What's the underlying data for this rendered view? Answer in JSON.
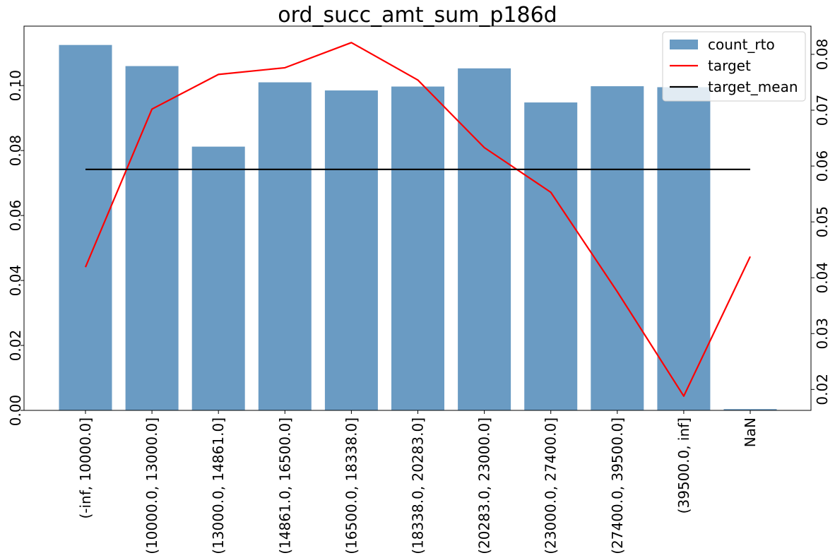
{
  "chart_data": {
    "type": "bar",
    "title": "ord_succ_amt_sum_p186d",
    "xlabel": "",
    "ylabel": "",
    "y2label": "",
    "categories": [
      "(-inf, 10000.0]",
      "(10000.0, 13000.0]",
      "(13000.0, 14861.0]",
      "(14861.0, 16500.0]",
      "(16500.0, 18338.0]",
      "(18338.0, 20283.0]",
      "(20283.0, 23000.0]",
      "(23000.0, 27400.0]",
      "(27400.0, 39500.0]",
      "(39500.0, inf]",
      "NaN"
    ],
    "series": [
      {
        "name": "count_rto",
        "type": "bar",
        "axis": "left",
        "color": "#6a9bc3",
        "values": [
          0.1125,
          0.106,
          0.0812,
          0.101,
          0.0985,
          0.0997,
          0.1053,
          0.0948,
          0.0998,
          0.0995,
          0.0004
        ]
      },
      {
        "name": "target",
        "type": "line",
        "axis": "right",
        "color": "#ff0000",
        "values": [
          0.0419,
          0.0702,
          0.0764,
          0.0776,
          0.0821,
          0.0754,
          0.0633,
          0.0553,
          0.0375,
          0.0188,
          0.0438
        ]
      },
      {
        "name": "target_mean",
        "type": "line",
        "axis": "right",
        "color": "#000000",
        "values": [
          0.0594,
          0.0594,
          0.0594,
          0.0594,
          0.0594,
          0.0594,
          0.0594,
          0.0594,
          0.0594,
          0.0594,
          0.0594
        ]
      }
    ],
    "ylim": [
      0,
      0.1183
    ],
    "y2lim": [
      0.01625,
      0.08505
    ],
    "yticks": [
      "0.00",
      "0.02",
      "0.04",
      "0.06",
      "0.08",
      "0.10"
    ],
    "y2ticks": [
      "0.02",
      "0.03",
      "0.04",
      "0.05",
      "0.06",
      "0.07",
      "0.08"
    ],
    "grid": false,
    "legend_position": "top-right"
  }
}
